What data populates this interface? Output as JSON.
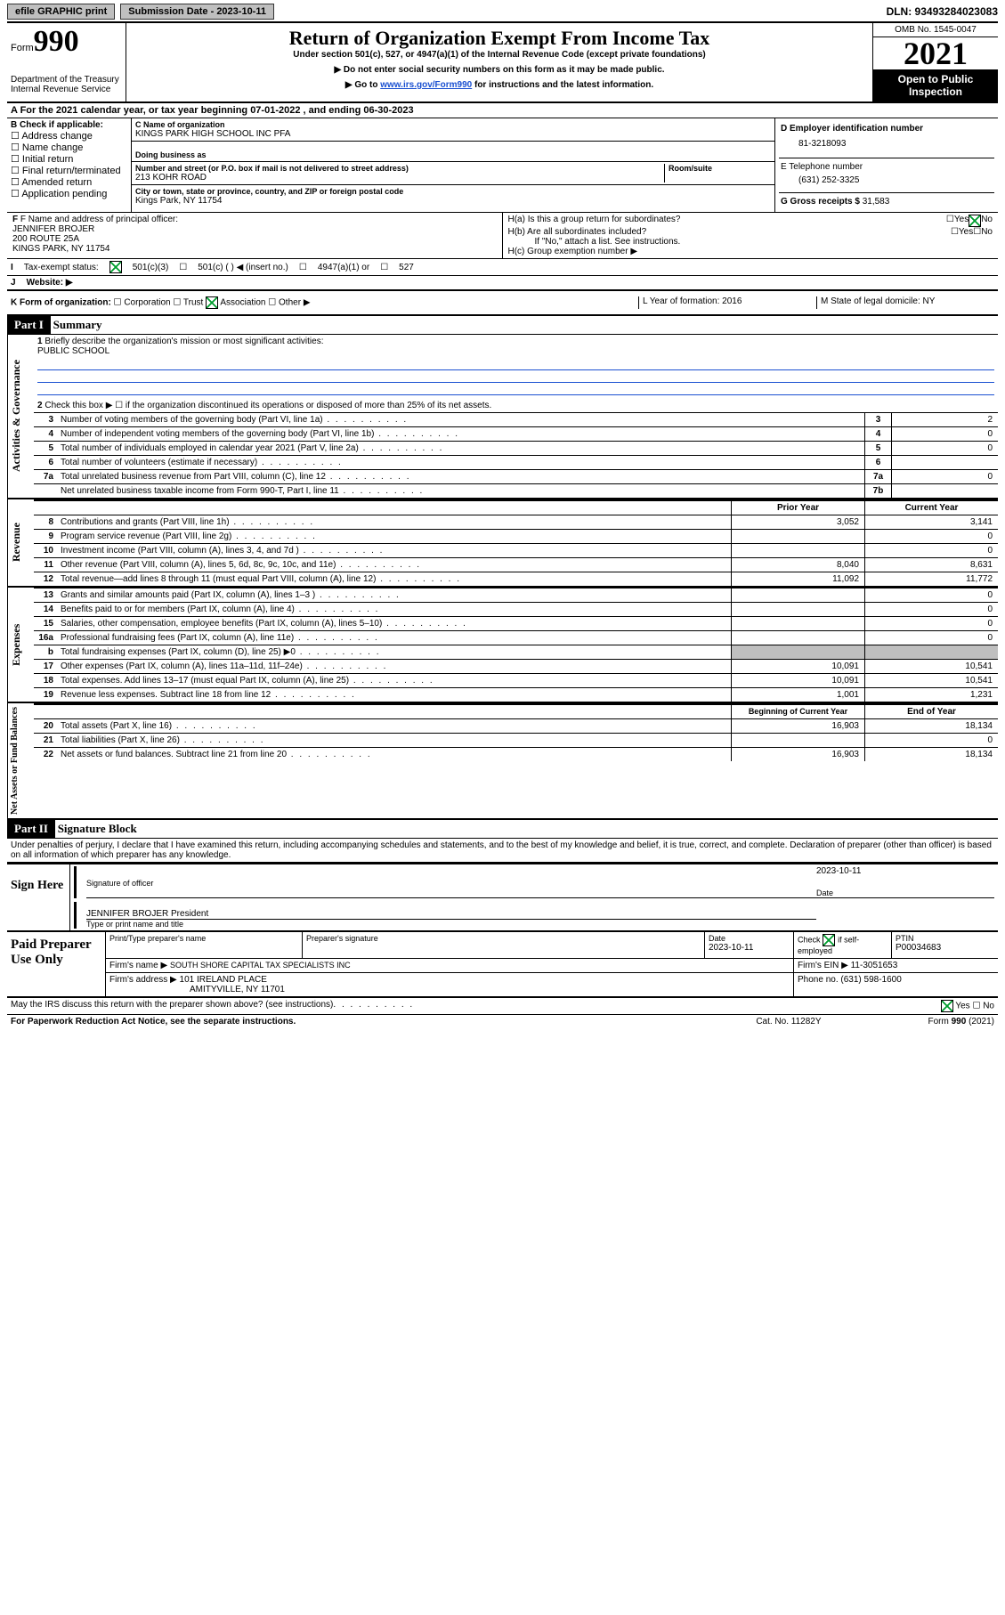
{
  "top": {
    "efile": "efile GRAPHIC print",
    "subdate_label": "Submission Date - 2023-10-11",
    "dln": "DLN: 93493284023083"
  },
  "head": {
    "form_word": "Form",
    "form_num": "990",
    "dept": "Department of the Treasury\nInternal Revenue Service",
    "title": "Return of Organization Exempt From Income Tax",
    "sub1": "Under section 501(c), 527, or 4947(a)(1) of the Internal Revenue Code (except private foundations)",
    "sub2": "▶ Do not enter social security numbers on this form as it may be made public.",
    "sub3_pre": "▶ Go to ",
    "sub3_link": "www.irs.gov/Form990",
    "sub3_post": " for instructions and the latest information.",
    "omb": "OMB No. 1545-0047",
    "year": "2021",
    "open": "Open to Public Inspection"
  },
  "a": {
    "txt": "A For the 2021 calendar year, or tax year beginning 07-01-2022    , and ending 06-30-2023"
  },
  "b": {
    "label": "B Check if applicable:",
    "opts": [
      "Address change",
      "Name change",
      "Initial return",
      "Final return/terminated",
      "Amended return",
      "Application pending"
    ]
  },
  "c": {
    "name_lbl": "C Name of organization",
    "name": "KINGS PARK HIGH SCHOOL INC PFA",
    "dba_lbl": "Doing business as",
    "street_lbl": "Number and street (or P.O. box if mail is not delivered to street address)",
    "room_lbl": "Room/suite",
    "street": "213 KOHR ROAD",
    "city_lbl": "City or town, state or province, country, and ZIP or foreign postal code",
    "city": "Kings Park, NY  11754"
  },
  "d": {
    "lbl": "D Employer identification number",
    "val": "81-3218093"
  },
  "e": {
    "lbl": "E Telephone number",
    "val": "(631) 252-3325"
  },
  "g": {
    "lbl": "G Gross receipts $",
    "val": "31,583"
  },
  "f": {
    "lbl": "F  Name and address of principal officer:",
    "name": "JENNIFER BROJER",
    "addr1": "200 ROUTE 25A",
    "addr2": "KINGS PARK, NY  11754"
  },
  "h": {
    "a": "H(a)  Is this a group return for subordinates?",
    "b": "H(b)  Are all subordinates included?",
    "note": "If \"No,\" attach a list. See instructions.",
    "c": "H(c)  Group exemption number ▶",
    "yes": "Yes",
    "no": "No"
  },
  "i": {
    "lbl": "I",
    "txt": "Tax-exempt status:",
    "c3": "501(c)(3)",
    "c": "501(c) (  ) ◀ (insert no.)",
    "a1": "4947(a)(1) or",
    "s527": "527"
  },
  "j": {
    "lbl": "J",
    "txt": "Website: ▶"
  },
  "k": {
    "lbl": "K Form of organization:",
    "corp": "Corporation",
    "trust": "Trust",
    "assoc": "Association",
    "other": "Other ▶"
  },
  "l": {
    "txt": "L Year of formation: 2016"
  },
  "m": {
    "txt": "M State of legal domicile: NY"
  },
  "part1": {
    "hdr": "Part I",
    "title": "Summary"
  },
  "mission": {
    "line1_lbl": "1",
    "line1_txt": "Briefly describe the organization's mission or most significant activities:",
    "line1_val": "PUBLIC SCHOOL"
  },
  "gov": {
    "l2": "Check this box ▶ ☐  if the organization discontinued its operations or disposed of more than 25% of its net assets.",
    "rows": [
      {
        "n": "3",
        "t": "Number of voting members of the governing body (Part VI, line 1a)",
        "box": "3",
        "v": "2"
      },
      {
        "n": "4",
        "t": "Number of independent voting members of the governing body (Part VI, line 1b)",
        "box": "4",
        "v": "0"
      },
      {
        "n": "5",
        "t": "Total number of individuals employed in calendar year 2021 (Part V, line 2a)",
        "box": "5",
        "v": "0"
      },
      {
        "n": "6",
        "t": "Total number of volunteers (estimate if necessary)",
        "box": "6",
        "v": ""
      },
      {
        "n": "7a",
        "t": "Total unrelated business revenue from Part VIII, column (C), line 12",
        "box": "7a",
        "v": "0"
      },
      {
        "n": "",
        "t": "Net unrelated business taxable income from Form 990-T, Part I, line 11",
        "box": "7b",
        "v": ""
      }
    ]
  },
  "yearhdr": {
    "prior": "Prior Year",
    "cur": "Current Year"
  },
  "rev": [
    {
      "n": "8",
      "t": "Contributions and grants (Part VIII, line 1h)",
      "p": "3,052",
      "c": "3,141"
    },
    {
      "n": "9",
      "t": "Program service revenue (Part VIII, line 2g)",
      "p": "",
      "c": "0"
    },
    {
      "n": "10",
      "t": "Investment income (Part VIII, column (A), lines 3, 4, and 7d )",
      "p": "",
      "c": "0"
    },
    {
      "n": "11",
      "t": "Other revenue (Part VIII, column (A), lines 5, 6d, 8c, 9c, 10c, and 11e)",
      "p": "8,040",
      "c": "8,631"
    },
    {
      "n": "12",
      "t": "Total revenue—add lines 8 through 11 (must equal Part VIII, column (A), line 12)",
      "p": "11,092",
      "c": "11,772"
    }
  ],
  "exp": [
    {
      "n": "13",
      "t": "Grants and similar amounts paid (Part IX, column (A), lines 1–3 )",
      "p": "",
      "c": "0"
    },
    {
      "n": "14",
      "t": "Benefits paid to or for members (Part IX, column (A), line 4)",
      "p": "",
      "c": "0"
    },
    {
      "n": "15",
      "t": "Salaries, other compensation, employee benefits (Part IX, column (A), lines 5–10)",
      "p": "",
      "c": "0"
    },
    {
      "n": "16a",
      "t": "Professional fundraising fees (Part IX, column (A), line 11e)",
      "p": "",
      "c": "0"
    },
    {
      "n": "b",
      "t": "Total fundraising expenses (Part IX, column (D), line 25) ▶0",
      "p": "GRAY",
      "c": "GRAY"
    },
    {
      "n": "17",
      "t": "Other expenses (Part IX, column (A), lines 11a–11d, 11f–24e)",
      "p": "10,091",
      "c": "10,541"
    },
    {
      "n": "18",
      "t": "Total expenses. Add lines 13–17 (must equal Part IX, column (A), line 25)",
      "p": "10,091",
      "c": "10,541"
    },
    {
      "n": "19",
      "t": "Revenue less expenses. Subtract line 18 from line 12",
      "p": "1,001",
      "c": "1,231"
    }
  ],
  "balhdr": {
    "beg": "Beginning of Current Year",
    "end": "End of Year"
  },
  "bal": [
    {
      "n": "20",
      "t": "Total assets (Part X, line 16)",
      "p": "16,903",
      "c": "18,134"
    },
    {
      "n": "21",
      "t": "Total liabilities (Part X, line 26)",
      "p": "",
      "c": "0"
    },
    {
      "n": "22",
      "t": "Net assets or fund balances. Subtract line 21 from line 20",
      "p": "16,903",
      "c": "18,134"
    }
  ],
  "part2": {
    "hdr": "Part II",
    "title": "Signature Block"
  },
  "decl": "Under penalties of perjury, I declare that I have examined this return, including accompanying schedules and statements, and to the best of my knowledge and belief, it is true, correct, and complete. Declaration of preparer (other than officer) is based on all information of which preparer has any knowledge.",
  "sign": {
    "here": "Sign Here",
    "sig_lbl": "Signature of officer",
    "date_lbl": "Date",
    "date": "2023-10-11",
    "name": "JENNIFER BROJER  President",
    "name_lbl": "Type or print name and title"
  },
  "paid": {
    "title": "Paid Preparer Use Only",
    "r1": {
      "c1": "Print/Type preparer's name",
      "c2": "Preparer's signature",
      "c3_lbl": "Date",
      "c3": "2023-10-11",
      "c4_lbl": "Check",
      "c4_sub": "if self-employed",
      "c5_lbl": "PTIN",
      "c5": "P00034683"
    },
    "r2": {
      "lbl": "Firm's name      ▶",
      "val": "SOUTH SHORE CAPITAL TAX SPECIALISTS INC",
      "ein_lbl": "Firm's EIN ▶",
      "ein": "11-3051653"
    },
    "r3": {
      "lbl": "Firm's address  ▶",
      "val1": "101 IRELAND PLACE",
      "val2": "AMITYVILLE, NY  11701",
      "ph_lbl": "Phone no.",
      "ph": "(631) 598-1600"
    }
  },
  "may": {
    "txt": "May the IRS discuss this return with the preparer shown above? (see instructions)",
    "yes": "Yes",
    "no": "No"
  },
  "foot": {
    "l": "For Paperwork Reduction Act Notice, see the separate instructions.",
    "m": "Cat. No. 11282Y",
    "r": "Form 990 (2021)"
  },
  "sidelabels": {
    "gov": "Activities & Governance",
    "rev": "Revenue",
    "exp": "Expenses",
    "bal": "Net Assets or Fund Balances"
  }
}
